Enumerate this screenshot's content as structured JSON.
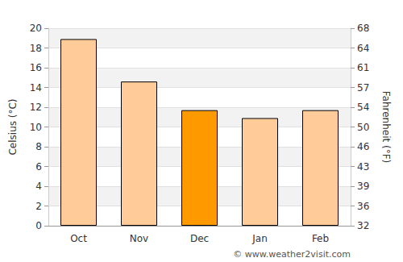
{
  "chart_data": {
    "type": "bar",
    "categories": [
      "Oct",
      "Nov",
      "Dec",
      "Jan",
      "Feb"
    ],
    "values": [
      18.9,
      14.6,
      11.7,
      10.9,
      11.7
    ],
    "colors": [
      "#ffcc99",
      "#ffcc99",
      "#ff9900",
      "#ffcc99",
      "#ffcc99"
    ],
    "ylabel": "Celsius (°C)",
    "ylim": [
      0,
      20
    ],
    "yticks": [
      0,
      2,
      4,
      6,
      8,
      10,
      12,
      14,
      16,
      18,
      20
    ],
    "y2label": "Fahrenheit (°F)",
    "y2lim": [
      32,
      68
    ],
    "y2ticks": [
      32,
      {
        "value": 35.6,
        "label": "36"
      },
      {
        "value": 39.2,
        "label": "39"
      },
      {
        "value": 42.8,
        "label": "43"
      },
      {
        "value": 46.4,
        "label": "46"
      },
      50,
      {
        "value": 53.6,
        "label": "54"
      },
      {
        "value": 57.2,
        "label": "57"
      },
      {
        "value": 60.8,
        "label": "61"
      },
      {
        "value": 64.4,
        "label": "64"
      },
      68
    ],
    "grid": true,
    "annotations": [
      "© www.weather2visit.com"
    ]
  }
}
